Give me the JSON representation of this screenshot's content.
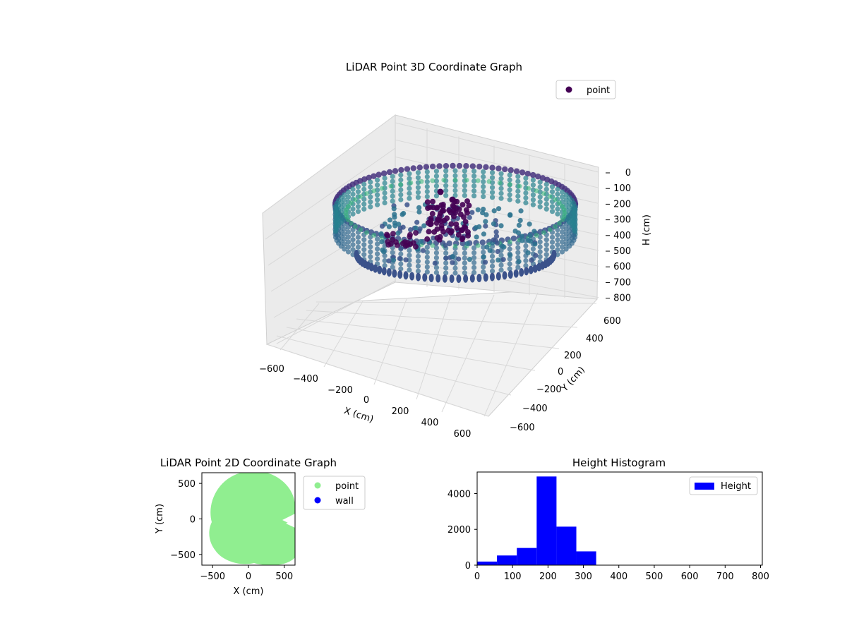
{
  "chart_data": [
    {
      "type": "scatter",
      "projection": "3d",
      "title": "LiDAR Point 3D Coordinate Graph",
      "xlabel": "X (cm)",
      "ylabel": "Y (cm)",
      "zlabel": "H (cm)",
      "xlim": [
        -650,
        650
      ],
      "ylim": [
        -650,
        650
      ],
      "zlim": [
        0,
        800
      ],
      "z_inverted": true,
      "x_ticks": [
        "−600",
        "−400",
        "−200",
        "0",
        "200",
        "400",
        "600"
      ],
      "y_ticks": [
        "−600",
        "−400",
        "−200",
        "0",
        "200",
        "400",
        "600"
      ],
      "z_ticks": [
        "0",
        "100",
        "200",
        "300",
        "400",
        "500",
        "600",
        "700",
        "800"
      ],
      "legend": [
        "point"
      ],
      "legend_position": "upper-right",
      "colormap": "viridis",
      "colors": {
        "point": "#440154",
        "ring_outer": "#3b528b",
        "ring_inner": "#35b779"
      },
      "grid": true
    },
    {
      "type": "scatter",
      "title": "LiDAR Point 2D Coordinate Graph",
      "xlabel": "X (cm)",
      "ylabel": "Y (cm)",
      "xlim": [
        -650,
        650
      ],
      "ylim": [
        -650,
        650
      ],
      "x_ticks": [
        "−500",
        "0",
        "500"
      ],
      "y_ticks": [
        "500",
        "0",
        "−500"
      ],
      "series": [
        {
          "name": "point",
          "color": "#90ee90"
        },
        {
          "name": "wall",
          "color": "#0000ff"
        }
      ],
      "legend_position": "outside-right"
    },
    {
      "type": "bar",
      "histogram": true,
      "title": "Height Histogram",
      "xlim": [
        0,
        805
      ],
      "ylim": [
        0,
        5200
      ],
      "x_ticks": [
        "0",
        "100",
        "200",
        "300",
        "400",
        "500",
        "600",
        "700",
        "800"
      ],
      "y_ticks": [
        "0",
        "2000",
        "4000"
      ],
      "bin_edges": [
        0,
        56,
        112,
        168,
        224,
        280,
        336
      ],
      "values": [
        200,
        540,
        960,
        4950,
        2150,
        770
      ],
      "series": [
        {
          "name": "Height",
          "color": "#0000ff"
        }
      ],
      "legend_position": "upper-right"
    }
  ]
}
